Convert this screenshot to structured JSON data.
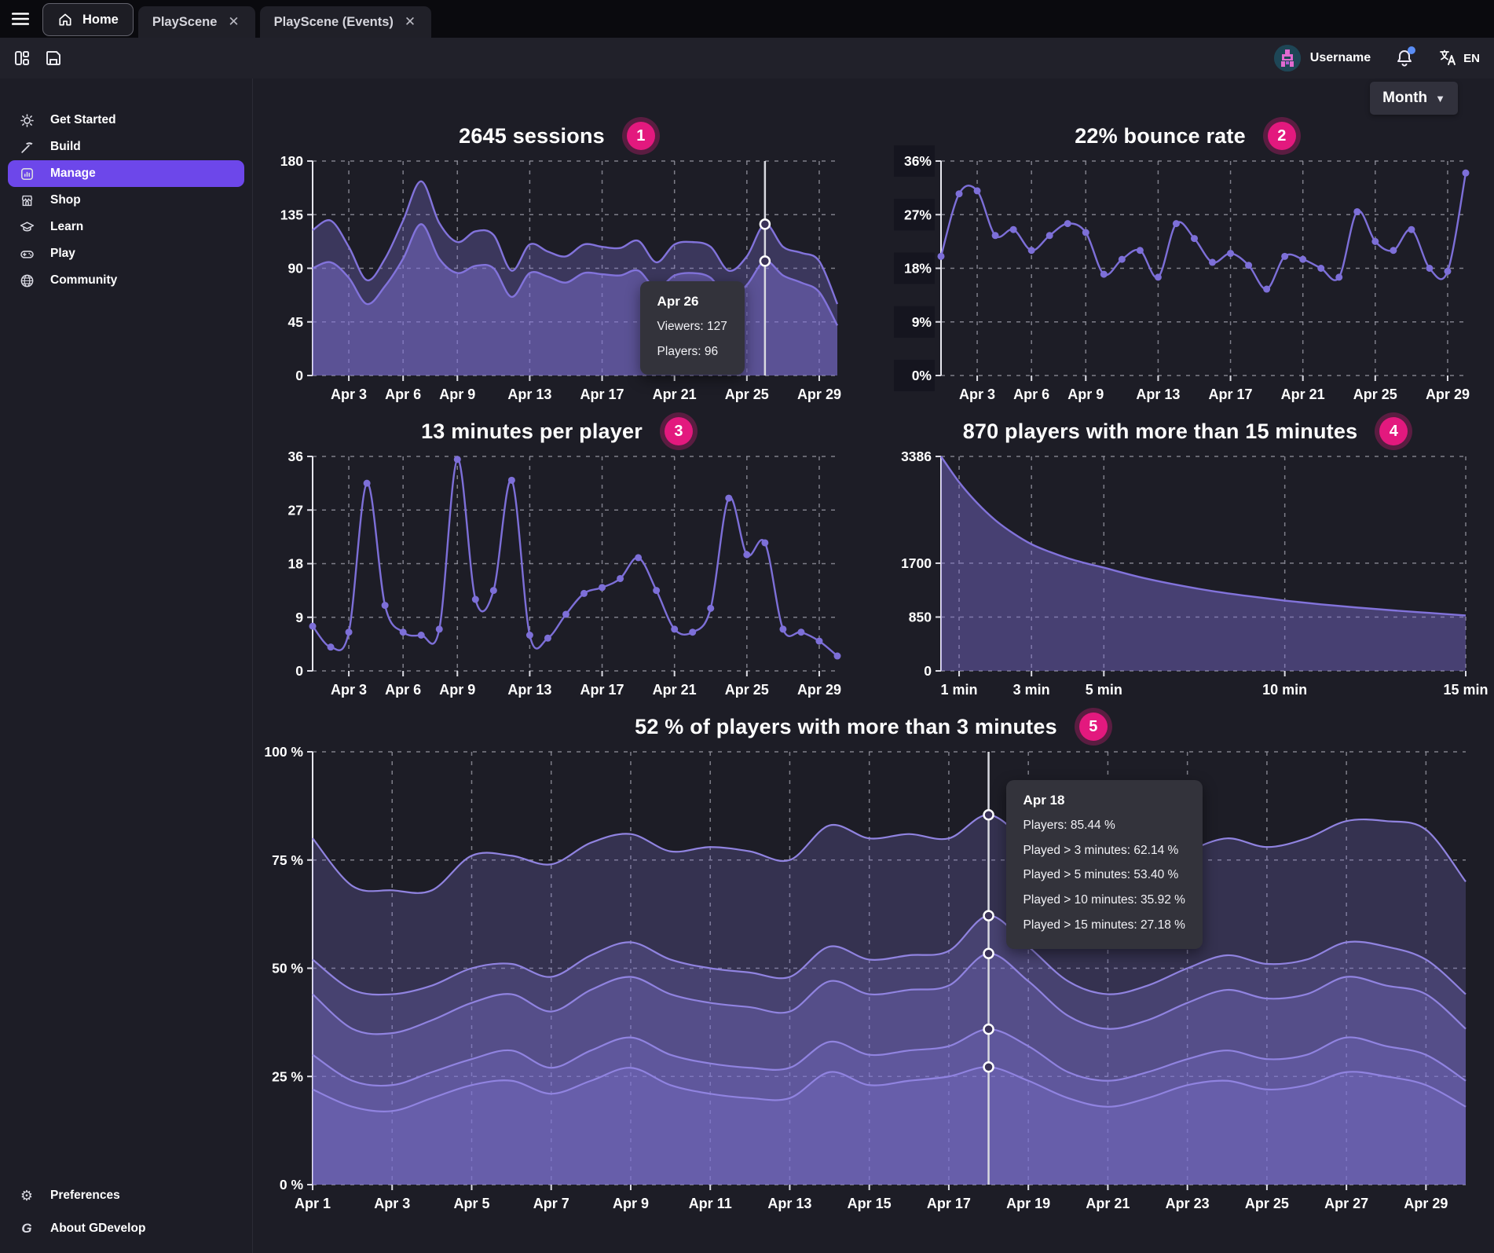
{
  "window": {
    "tabs": [
      {
        "label": "Home",
        "active": true,
        "closable": false
      },
      {
        "label": "PlayScene",
        "active": false,
        "closable": true
      },
      {
        "label": "PlayScene (Events)",
        "active": false,
        "closable": true
      }
    ]
  },
  "toolbar": {
    "username": "Username",
    "language_code": "EN",
    "has_notification": true
  },
  "sidebar": {
    "items": [
      {
        "id": "get-started",
        "label": "Get Started",
        "icon": "sun-icon",
        "active": false
      },
      {
        "id": "build",
        "label": "Build",
        "icon": "pickaxe-icon",
        "active": false
      },
      {
        "id": "manage",
        "label": "Manage",
        "icon": "bar-chart-icon",
        "active": true
      },
      {
        "id": "shop",
        "label": "Shop",
        "icon": "storefront-icon",
        "active": false
      },
      {
        "id": "learn",
        "label": "Learn",
        "icon": "graduation-cap-icon",
        "active": false
      },
      {
        "id": "play",
        "label": "Play",
        "icon": "gamepad-icon",
        "active": false
      },
      {
        "id": "community",
        "label": "Community",
        "icon": "globe-icon",
        "active": false
      }
    ],
    "footer": [
      {
        "id": "preferences",
        "label": "Preferences",
        "icon": "gear-icon"
      },
      {
        "id": "about",
        "label": "About GDevelop",
        "icon": "gdevelop-logo-icon"
      }
    ]
  },
  "content": {
    "period_label": "Month"
  },
  "chart_data": [
    {
      "id": "sessions",
      "type": "area",
      "badge": "1",
      "title": "2645 sessions",
      "x": [
        "Apr 1",
        "Apr 2",
        "Apr 3",
        "Apr 4",
        "Apr 5",
        "Apr 6",
        "Apr 7",
        "Apr 8",
        "Apr 9",
        "Apr 10",
        "Apr 11",
        "Apr 12",
        "Apr 13",
        "Apr 14",
        "Apr 15",
        "Apr 16",
        "Apr 17",
        "Apr 18",
        "Apr 19",
        "Apr 20",
        "Apr 21",
        "Apr 22",
        "Apr 23",
        "Apr 24",
        "Apr 25",
        "Apr 26",
        "Apr 27",
        "Apr 28",
        "Apr 29",
        "Apr 30"
      ],
      "x_ticks": [
        "Apr 3",
        "Apr 6",
        "Apr 9",
        "Apr 13",
        "Apr 17",
        "Apr 21",
        "Apr 25",
        "Apr 29"
      ],
      "ylim": [
        0,
        180
      ],
      "y_ticks": [
        {
          "v": 180,
          "label": "180"
        },
        {
          "v": 135,
          "label": "135"
        },
        {
          "v": 90,
          "label": "90"
        },
        {
          "v": 45,
          "label": "45"
        },
        {
          "v": 0,
          "label": "0"
        }
      ],
      "series": [
        {
          "name": "Viewers",
          "color": "#8273db",
          "fill": "rgba(130,115,219,0.30)",
          "markers": false,
          "values": [
            122,
            130,
            108,
            80,
            98,
            130,
            163,
            128,
            112,
            121,
            118,
            88,
            110,
            104,
            100,
            110,
            108,
            107,
            113,
            95,
            110,
            112,
            108,
            88,
            100,
            127,
            108,
            103,
            96,
            60
          ]
        },
        {
          "name": "Players",
          "color": "#8273db",
          "fill": "rgba(130,115,219,0.45)",
          "markers": false,
          "values": [
            90,
            95,
            82,
            60,
            75,
            98,
            127,
            98,
            86,
            92,
            90,
            66,
            86,
            83,
            78,
            86,
            85,
            84,
            88,
            73,
            84,
            86,
            82,
            64,
            76,
            96,
            84,
            78,
            70,
            42
          ]
        }
      ],
      "hover": {
        "x": "Apr 26",
        "tooltip": {
          "title": "Apr 26",
          "rows": [
            "Viewers: 127",
            "Players: 96"
          ]
        }
      }
    },
    {
      "id": "bounce-rate",
      "type": "line",
      "badge": "2",
      "title": "22% bounce rate",
      "x": [
        "Apr 1",
        "Apr 2",
        "Apr 3",
        "Apr 4",
        "Apr 5",
        "Apr 6",
        "Apr 7",
        "Apr 8",
        "Apr 9",
        "Apr 10",
        "Apr 11",
        "Apr 12",
        "Apr 13",
        "Apr 14",
        "Apr 15",
        "Apr 16",
        "Apr 17",
        "Apr 18",
        "Apr 19",
        "Apr 20",
        "Apr 21",
        "Apr 22",
        "Apr 23",
        "Apr 24",
        "Apr 25",
        "Apr 26",
        "Apr 27",
        "Apr 28",
        "Apr 29",
        "Apr 30"
      ],
      "x_ticks": [
        "Apr 3",
        "Apr 6",
        "Apr 9",
        "Apr 13",
        "Apr 17",
        "Apr 21",
        "Apr 25",
        "Apr 29"
      ],
      "ylim": [
        0,
        36
      ],
      "label_boxes": true,
      "y_ticks": [
        {
          "v": 36,
          "label": "36%"
        },
        {
          "v": 27,
          "label": "27%"
        },
        {
          "v": 18,
          "label": "18%"
        },
        {
          "v": 9,
          "label": "9%"
        },
        {
          "v": 0,
          "label": "0%"
        }
      ],
      "series": [
        {
          "name": "Bounce rate",
          "color": "#7d6fd8",
          "markers": true,
          "values": [
            20,
            30.5,
            31,
            23.5,
            24.5,
            21,
            23.5,
            25.5,
            24,
            17,
            19.5,
            21,
            16.5,
            25.5,
            23,
            19,
            20.5,
            18.5,
            14.5,
            20,
            19.5,
            18,
            16.5,
            27.5,
            22.5,
            21,
            24.5,
            18,
            17.5,
            34
          ]
        }
      ]
    },
    {
      "id": "minutes-per-player",
      "type": "line",
      "badge": "3",
      "title": "13 minutes per player",
      "x": [
        "Apr 1",
        "Apr 2",
        "Apr 3",
        "Apr 4",
        "Apr 5",
        "Apr 6",
        "Apr 7",
        "Apr 8",
        "Apr 9",
        "Apr 10",
        "Apr 11",
        "Apr 12",
        "Apr 13",
        "Apr 14",
        "Apr 15",
        "Apr 16",
        "Apr 17",
        "Apr 18",
        "Apr 19",
        "Apr 20",
        "Apr 21",
        "Apr 22",
        "Apr 23",
        "Apr 24",
        "Apr 25",
        "Apr 26",
        "Apr 27",
        "Apr 28",
        "Apr 29",
        "Apr 30"
      ],
      "x_ticks": [
        "Apr 3",
        "Apr 6",
        "Apr 9",
        "Apr 13",
        "Apr 17",
        "Apr 21",
        "Apr 25",
        "Apr 29"
      ],
      "ylim": [
        0,
        36
      ],
      "y_ticks": [
        {
          "v": 36,
          "label": "36"
        },
        {
          "v": 27,
          "label": "27"
        },
        {
          "v": 18,
          "label": "18"
        },
        {
          "v": 9,
          "label": "9"
        },
        {
          "v": 0,
          "label": "0"
        }
      ],
      "series": [
        {
          "name": "Minutes per player",
          "color": "#7d6fd8",
          "markers": true,
          "values": [
            7.5,
            4,
            6.5,
            31.5,
            11,
            6.5,
            6,
            7,
            35.5,
            12,
            13.5,
            32,
            6,
            5.5,
            9.5,
            13,
            14,
            15.5,
            19,
            13.5,
            7,
            6.5,
            10.5,
            29,
            19.5,
            21.5,
            7,
            6.5,
            5,
            2.5
          ]
        }
      ]
    },
    {
      "id": "retention",
      "type": "area",
      "badge": "4",
      "title": "870 players with more than 15 minutes",
      "x_numeric": true,
      "xlim": [
        0.5,
        15
      ],
      "x_vals": [
        0.5,
        1,
        1.5,
        2,
        2.5,
        3,
        3.5,
        4,
        4.5,
        5,
        6,
        7,
        8,
        9,
        10,
        11,
        12,
        13,
        14,
        15
      ],
      "x_ticks": [
        {
          "v": 1,
          "label": "1 min"
        },
        {
          "v": 3,
          "label": "3 min"
        },
        {
          "v": 5,
          "label": "5 min"
        },
        {
          "v": 10,
          "label": "10 min"
        },
        {
          "v": 15,
          "label": "15 min"
        }
      ],
      "ylim": [
        0,
        3386
      ],
      "y_ticks": [
        {
          "v": 3386,
          "label": "3386"
        },
        {
          "v": 1700,
          "label": "1700"
        },
        {
          "v": 850,
          "label": "850"
        },
        {
          "v": 0,
          "label": "0"
        }
      ],
      "series": [
        {
          "name": "Players",
          "color": "#8273db",
          "fill": "rgba(130,115,219,0.42)",
          "markers": false,
          "values": [
            3386,
            2980,
            2650,
            2380,
            2170,
            2000,
            1880,
            1780,
            1700,
            1630,
            1480,
            1360,
            1260,
            1180,
            1110,
            1050,
            1000,
            955,
            915,
            875
          ]
        }
      ]
    },
    {
      "id": "players-duration",
      "type": "area",
      "badge": "5",
      "title": "52 % of players with more than 3 minutes",
      "x": [
        "Apr 1",
        "Apr 2",
        "Apr 3",
        "Apr 4",
        "Apr 5",
        "Apr 6",
        "Apr 7",
        "Apr 8",
        "Apr 9",
        "Apr 10",
        "Apr 11",
        "Apr 12",
        "Apr 13",
        "Apr 14",
        "Apr 15",
        "Apr 16",
        "Apr 17",
        "Apr 18",
        "Apr 19",
        "Apr 20",
        "Apr 21",
        "Apr 22",
        "Apr 23",
        "Apr 24",
        "Apr 25",
        "Apr 26",
        "Apr 27",
        "Apr 28",
        "Apr 29",
        "Apr 30"
      ],
      "x_ticks": [
        "Apr 1",
        "Apr 3",
        "Apr 5",
        "Apr 7",
        "Apr 9",
        "Apr 11",
        "Apr 13",
        "Apr 15",
        "Apr 17",
        "Apr 19",
        "Apr 21",
        "Apr 23",
        "Apr 25",
        "Apr 27",
        "Apr 29"
      ],
      "ylim": [
        0,
        100
      ],
      "y_ticks": [
        {
          "v": 100,
          "label": "100 %"
        },
        {
          "v": 75,
          "label": "75 %"
        },
        {
          "v": 50,
          "label": "50 %"
        },
        {
          "v": 25,
          "label": "25 %"
        },
        {
          "v": 0,
          "label": "0 %"
        }
      ],
      "series": [
        {
          "name": "Players",
          "color": "#9083e0",
          "width": 2.2,
          "fill": "rgba(130,115,219,0.24)",
          "markers": false,
          "values": [
            80,
            69,
            68,
            68,
            76,
            76,
            74,
            79,
            81,
            77,
            78,
            77,
            75,
            83,
            80,
            81,
            80,
            85.44,
            79,
            73,
            71,
            73,
            77,
            80,
            78,
            80,
            84,
            84,
            82,
            70
          ]
        },
        {
          "name": "Played > 3 minutes",
          "color": "#9083e0",
          "width": 2.2,
          "fill": "rgba(130,115,219,0.24)",
          "markers": false,
          "values": [
            52,
            45,
            44,
            46,
            50,
            51,
            48,
            53,
            56,
            52,
            50,
            49,
            48,
            55,
            52,
            53,
            54,
            62.14,
            55,
            47,
            44,
            46,
            50,
            53,
            51,
            52,
            56,
            55,
            52,
            44
          ]
        },
        {
          "name": "Played > 5 minutes",
          "color": "#9083e0",
          "width": 2.2,
          "fill": "rgba(130,115,219,0.24)",
          "markers": false,
          "values": [
            44,
            36,
            35,
            38,
            42,
            44,
            40,
            45,
            48,
            44,
            42,
            41,
            40,
            47,
            44,
            45,
            46,
            53.4,
            47,
            39,
            36,
            38,
            42,
            45,
            43,
            44,
            48,
            46,
            44,
            36
          ]
        },
        {
          "name": "Played > 10 minutes",
          "color": "#9083e0",
          "width": 2.2,
          "fill": "rgba(130,115,219,0.24)",
          "markers": false,
          "values": [
            30,
            24,
            23,
            26,
            29,
            31,
            27,
            31,
            34,
            30,
            28,
            27,
            27,
            33,
            30,
            31,
            32,
            35.92,
            32,
            26,
            24,
            26,
            29,
            31,
            29,
            30,
            34,
            32,
            30,
            24
          ]
        },
        {
          "name": "Played > 15 minutes",
          "color": "#9083e0",
          "width": 2.2,
          "fill": "rgba(130,115,219,0.24)",
          "markers": false,
          "values": [
            22,
            18,
            17,
            20,
            23,
            24,
            21,
            24,
            27,
            23,
            21,
            20,
            20,
            26,
            23,
            24,
            25,
            27.18,
            24,
            20,
            18,
            20,
            23,
            24,
            22,
            23,
            26,
            25,
            23,
            18
          ]
        }
      ],
      "hover": {
        "x": "Apr 18",
        "tooltip": {
          "title": "Apr 18",
          "rows": [
            "Players: 85.44 %",
            "Played > 3 minutes: 62.14 %",
            "Played > 5 minutes: 53.40 %",
            "Played > 10 minutes: 35.92 %",
            "Played > 15 minutes: 27.18 %"
          ]
        }
      }
    }
  ]
}
